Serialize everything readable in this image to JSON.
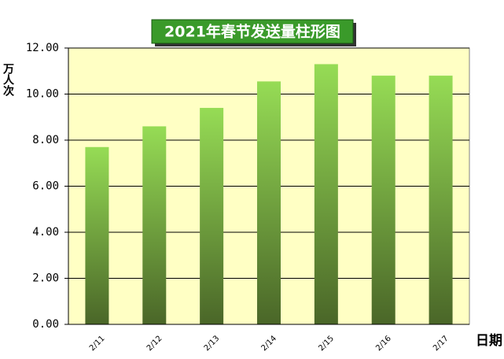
{
  "chart_data": {
    "type": "bar",
    "title": "2021年春节发送量柱形图",
    "y_label": "万人次",
    "x_label": "日期",
    "categories": [
      "2/11",
      "2/12",
      "2/13",
      "2/14",
      "2/15",
      "2/16",
      "2/17"
    ],
    "values": [
      7.7,
      8.6,
      9.4,
      10.55,
      11.3,
      10.8,
      10.8
    ],
    "color": "#96dc55",
    "ylim": [
      0,
      12
    ],
    "yticks": [
      {
        "value": 0,
        "label": "0.00"
      },
      {
        "value": 2,
        "label": "2.00"
      },
      {
        "value": 4,
        "label": "4.00"
      },
      {
        "value": 6,
        "label": "6.00"
      },
      {
        "value": 8,
        "label": "8.00"
      },
      {
        "value": 10,
        "label": "10.00"
      },
      {
        "value": 12,
        "label": "12.00"
      }
    ],
    "grid": true
  }
}
